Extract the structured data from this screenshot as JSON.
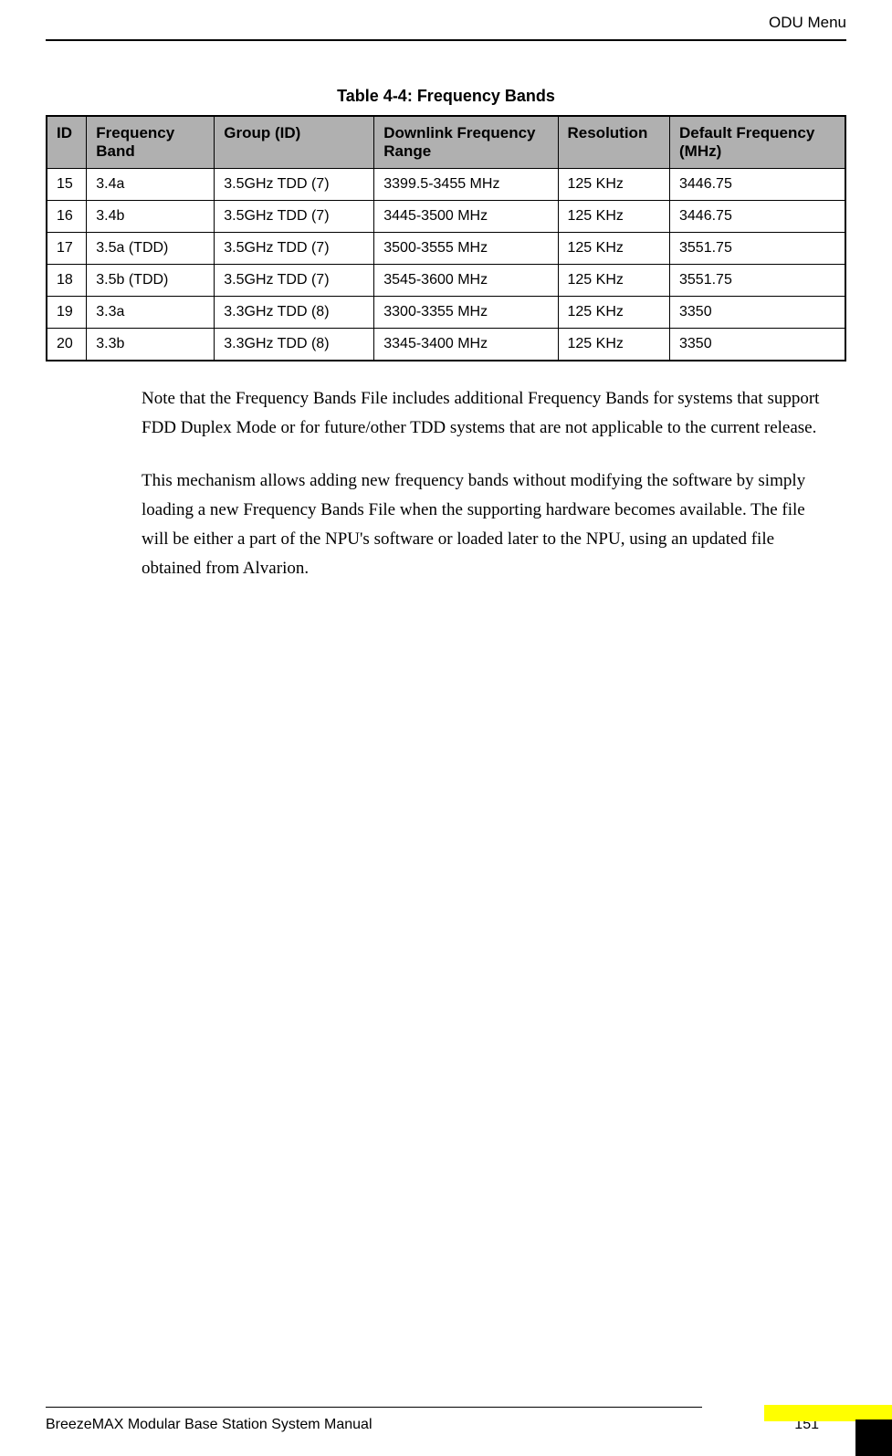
{
  "header": {
    "title": "ODU Menu"
  },
  "table": {
    "caption": "Table 4-4: Frequency Bands",
    "columns": [
      "ID",
      "Frequency Band",
      "Group (ID)",
      "Downlink Frequency Range",
      "Resolution",
      "Default Frequency (MHz)"
    ],
    "rows": [
      [
        "15",
        "3.4a",
        "3.5GHz TDD (7)",
        "3399.5-3455 MHz",
        "125 KHz",
        "3446.75"
      ],
      [
        "16",
        "3.4b",
        "3.5GHz TDD (7)",
        "3445-3500 MHz",
        "125 KHz",
        "3446.75"
      ],
      [
        "17",
        "3.5a (TDD)",
        "3.5GHz TDD (7)",
        "3500-3555 MHz",
        "125 KHz",
        "3551.75"
      ],
      [
        "18",
        "3.5b (TDD)",
        "3.5GHz TDD (7)",
        "3545-3600 MHz",
        "125 KHz",
        "3551.75"
      ],
      [
        "19",
        "3.3a",
        "3.3GHz TDD (8)",
        "3300-3355 MHz",
        "125 KHz",
        "3350"
      ],
      [
        "20",
        "3.3b",
        "3.3GHz TDD (8)",
        "3345-3400 MHz",
        "125 KHz",
        "3350"
      ]
    ],
    "header_bg_color": "#b0b0b0",
    "border_color": "#000000"
  },
  "paragraphs": {
    "p1": "Note that the Frequency Bands File includes additional Frequency Bands for systems that support FDD Duplex Mode or for future/other TDD systems that are not applicable to the current release.",
    "p2": "This mechanism allows adding new frequency bands without modifying the software by simply loading a new Frequency Bands File when the supporting hardware becomes available. The file will be either a part of the NPU's software or loaded later to the NPU, using an updated file obtained from Alvarion."
  },
  "footer": {
    "manual_title": "BreezeMAX Modular Base Station System Manual",
    "page_number": "151"
  }
}
